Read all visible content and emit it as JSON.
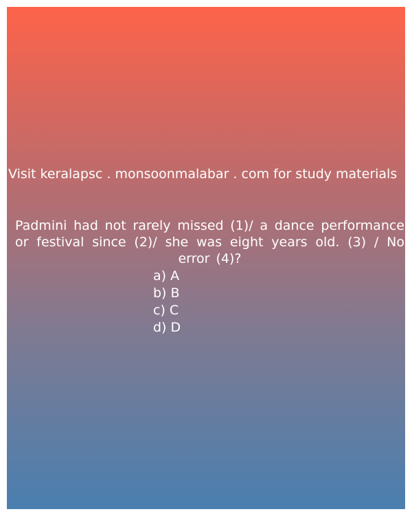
{
  "banner": {
    "text": "Visit keralapsc . monsoonmalabar . com for study materials"
  },
  "question": {
    "text": "Padmini had not rarely missed (1)/ a dance performance or festival since (2)/ she was eight years old. (3) / No error (4)?"
  },
  "options": [
    {
      "label": "a) A"
    },
    {
      "label": "b) B"
    },
    {
      "label": "c) C"
    },
    {
      "label": "d) D"
    }
  ],
  "colors": {
    "gradient_top": "#fe634a",
    "gradient_bottom": "#4a7fb0",
    "text": "#ffffff"
  }
}
